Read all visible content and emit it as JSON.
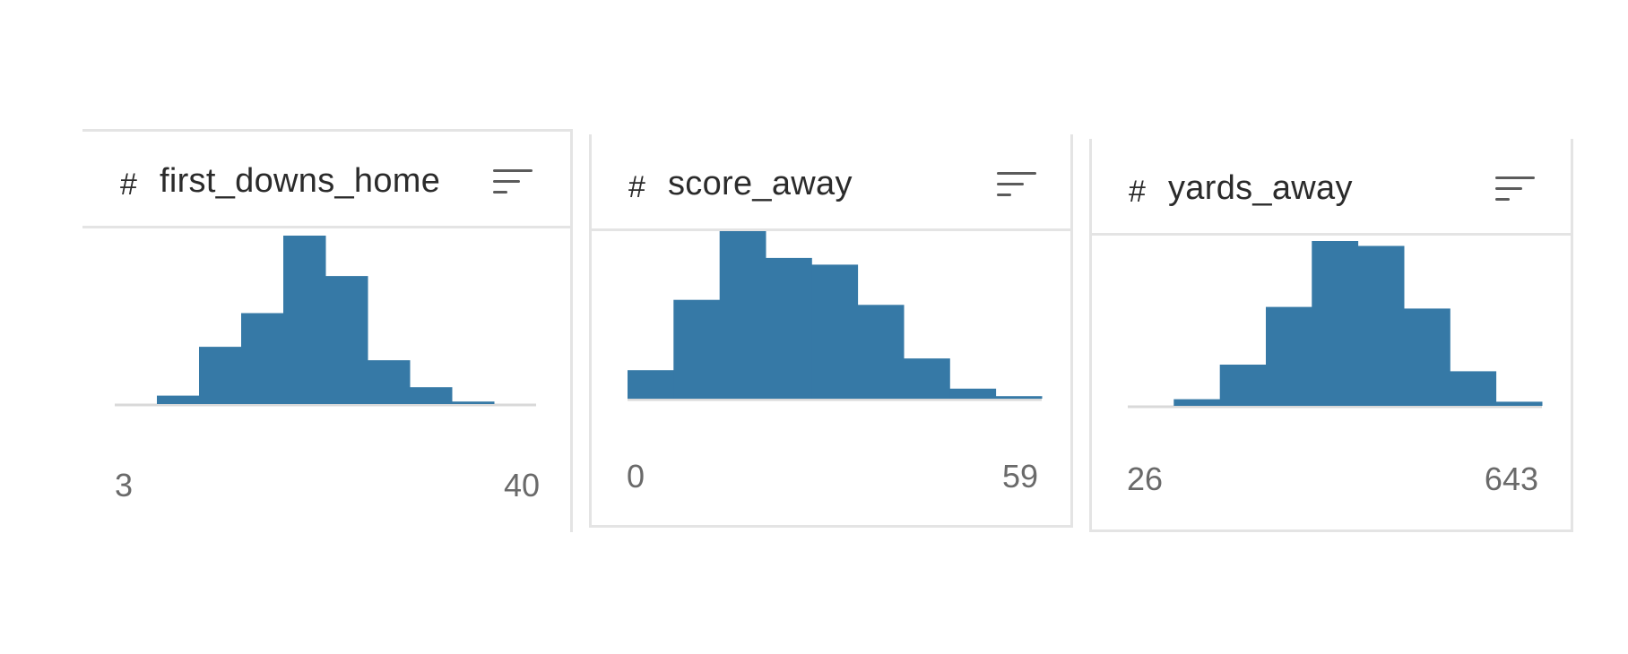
{
  "columns": [
    {
      "type_icon": "#",
      "name": "first_downs_home",
      "min_label": "3",
      "max_label": "40",
      "sort_icon": "sort-icon"
    },
    {
      "type_icon": "#",
      "name": "score_away",
      "min_label": "0",
      "max_label": "59",
      "sort_icon": "sort-icon"
    },
    {
      "type_icon": "#",
      "name": "yards_away",
      "min_label": "26",
      "max_label": "643",
      "sort_icon": "sort-icon"
    }
  ],
  "bar_color": "#3679a6",
  "chart_data": [
    {
      "type": "bar",
      "title": "first_downs_home",
      "xlim": [
        3,
        40
      ],
      "values": [
        0,
        5,
        34,
        54,
        100,
        76,
        26,
        10,
        1.5,
        0
      ]
    },
    {
      "type": "bar",
      "title": "score_away",
      "xlim": [
        0,
        59
      ],
      "values": [
        17,
        59,
        100,
        84,
        80,
        56,
        24,
        6,
        1.5
      ]
    },
    {
      "type": "bar",
      "title": "yards_away",
      "xlim": [
        26,
        643
      ],
      "values": [
        0,
        4,
        25,
        60,
        100,
        97,
        59,
        21,
        2.5
      ]
    }
  ]
}
